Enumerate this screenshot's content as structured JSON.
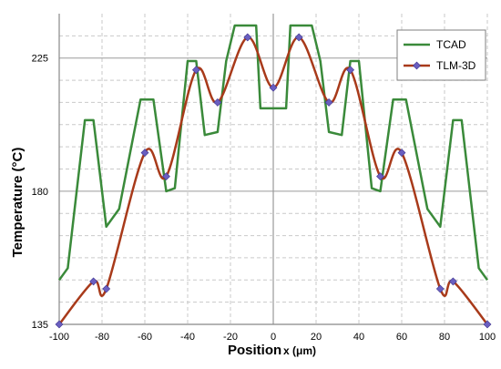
{
  "chart_data": {
    "type": "line",
    "title": "",
    "xlabel": "Position",
    "xlabel_suffix": "x (μm)",
    "ylabel": "Temperature (°C)",
    "xlim": [
      -100,
      100
    ],
    "ylim": [
      135,
      240
    ],
    "xticks": [
      "-100",
      "-80",
      "-60",
      "-40",
      "-20",
      "0",
      "20",
      "40",
      "60",
      "80",
      "100"
    ],
    "yticks": [
      "135",
      "180",
      "225"
    ],
    "grid": true,
    "legend_position": "top-right",
    "series": [
      {
        "name": "TCAD",
        "color": "#3a8a3a",
        "marker": "none",
        "x": [
          -100,
          -96,
          -88,
          -84,
          -78,
          -72,
          -62,
          -56,
          -50,
          -46,
          -40,
          -36,
          -32,
          -26,
          -22,
          -18,
          -14,
          -8,
          -6,
          6,
          8,
          14,
          18,
          22,
          26,
          32,
          36,
          40,
          46,
          50,
          56,
          62,
          72,
          78,
          84,
          88,
          96,
          100
        ],
        "y": [
          150,
          154,
          204,
          204,
          168,
          174,
          211,
          211,
          180,
          181,
          224,
          224,
          199,
          200,
          224,
          236,
          236,
          236,
          208,
          208,
          236,
          236,
          236,
          224,
          200,
          199,
          224,
          224,
          181,
          180,
          211,
          211,
          174,
          168,
          204,
          204,
          154,
          150
        ]
      },
      {
        "name": "TLM-3D",
        "color": "#a83a1a",
        "marker": "diamond",
        "marker_color": "#6a5fc0",
        "x": [
          -100,
          -84,
          -78,
          -60,
          -50,
          -36,
          -26,
          -12,
          0,
          12,
          26,
          36,
          50,
          60,
          78,
          84,
          100
        ],
        "y": [
          135,
          149.5,
          147,
          193,
          185,
          221,
          210,
          232,
          215,
          232,
          210,
          221,
          185,
          193,
          147,
          149.5,
          135
        ]
      }
    ]
  }
}
